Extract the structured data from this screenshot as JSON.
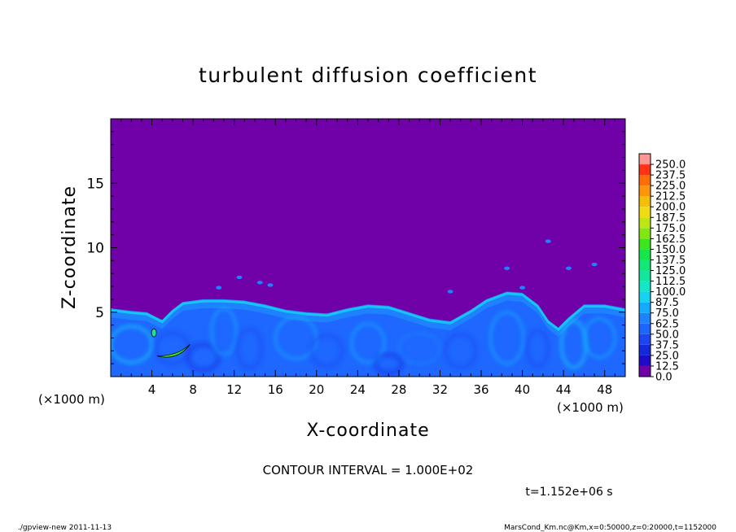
{
  "chart_data": {
    "type": "heatmap",
    "title": "turbulent diffusion coefficient",
    "xlabel": "X-coordinate",
    "ylabel": "Z-coordinate",
    "x_unit": "(×1000 m)",
    "z_unit": "(×1000 m)",
    "xlim": [
      0,
      50
    ],
    "ylim": [
      0,
      20
    ],
    "x_ticks": [
      4,
      8,
      12,
      16,
      20,
      24,
      28,
      32,
      36,
      40,
      44,
      48
    ],
    "y_ticks": [
      5,
      10,
      15
    ],
    "colorbar": {
      "levels": [
        "0.0",
        "12.5",
        "25.0",
        "37.5",
        "50.0",
        "62.5",
        "75.0",
        "87.5",
        "100.0",
        "112.5",
        "125.0",
        "137.5",
        "150.0",
        "162.5",
        "175.0",
        "187.5",
        "200.0",
        "212.5",
        "225.0",
        "237.5",
        "250.0"
      ],
      "colors": [
        "#7000a8",
        "#1e0ac8",
        "#1428dc",
        "#1e46f0",
        "#1e64ff",
        "#1e82ff",
        "#14aaff",
        "#14d2f0",
        "#14e6c8",
        "#14e6a0",
        "#14e678",
        "#14e64b",
        "#3ce61e",
        "#82e614",
        "#bee614",
        "#f0dc14",
        "#f5be0a",
        "#ff960a",
        "#ff6e0a",
        "#ff3214",
        "#ff9696"
      ],
      "grid": false
    },
    "boundary_layer_top_km": [
      [
        0,
        5.3
      ],
      [
        2,
        5.1
      ],
      [
        3.5,
        5.0
      ],
      [
        5,
        4.4
      ],
      [
        6,
        5.2
      ],
      [
        7,
        5.8
      ],
      [
        9,
        6.0
      ],
      [
        11,
        6.0
      ],
      [
        13,
        5.9
      ],
      [
        15,
        5.6
      ],
      [
        17,
        5.2
      ],
      [
        19,
        5.0
      ],
      [
        21,
        4.9
      ],
      [
        23,
        5.3
      ],
      [
        25,
        5.6
      ],
      [
        27,
        5.5
      ],
      [
        29,
        5.0
      ],
      [
        31,
        4.5
      ],
      [
        33,
        4.3
      ],
      [
        35,
        5.2
      ],
      [
        36.5,
        6.0
      ],
      [
        38.5,
        6.6
      ],
      [
        40,
        6.5
      ],
      [
        41.5,
        5.6
      ],
      [
        42.5,
        4.4
      ],
      [
        43.5,
        3.8
      ],
      [
        44.5,
        4.6
      ],
      [
        46,
        5.6
      ],
      [
        48,
        5.6
      ],
      [
        50,
        5.3
      ]
    ],
    "contour_interval": "CONTOUR INTERVAL = 1.000E+02",
    "time_label": "t=1.152e+06 s"
  },
  "footer": {
    "program": "./gpview-new   2011-11-13",
    "source": "MarsCond_Km.nc@Km,x=0:50000,z=0:20000,t=1152000"
  }
}
